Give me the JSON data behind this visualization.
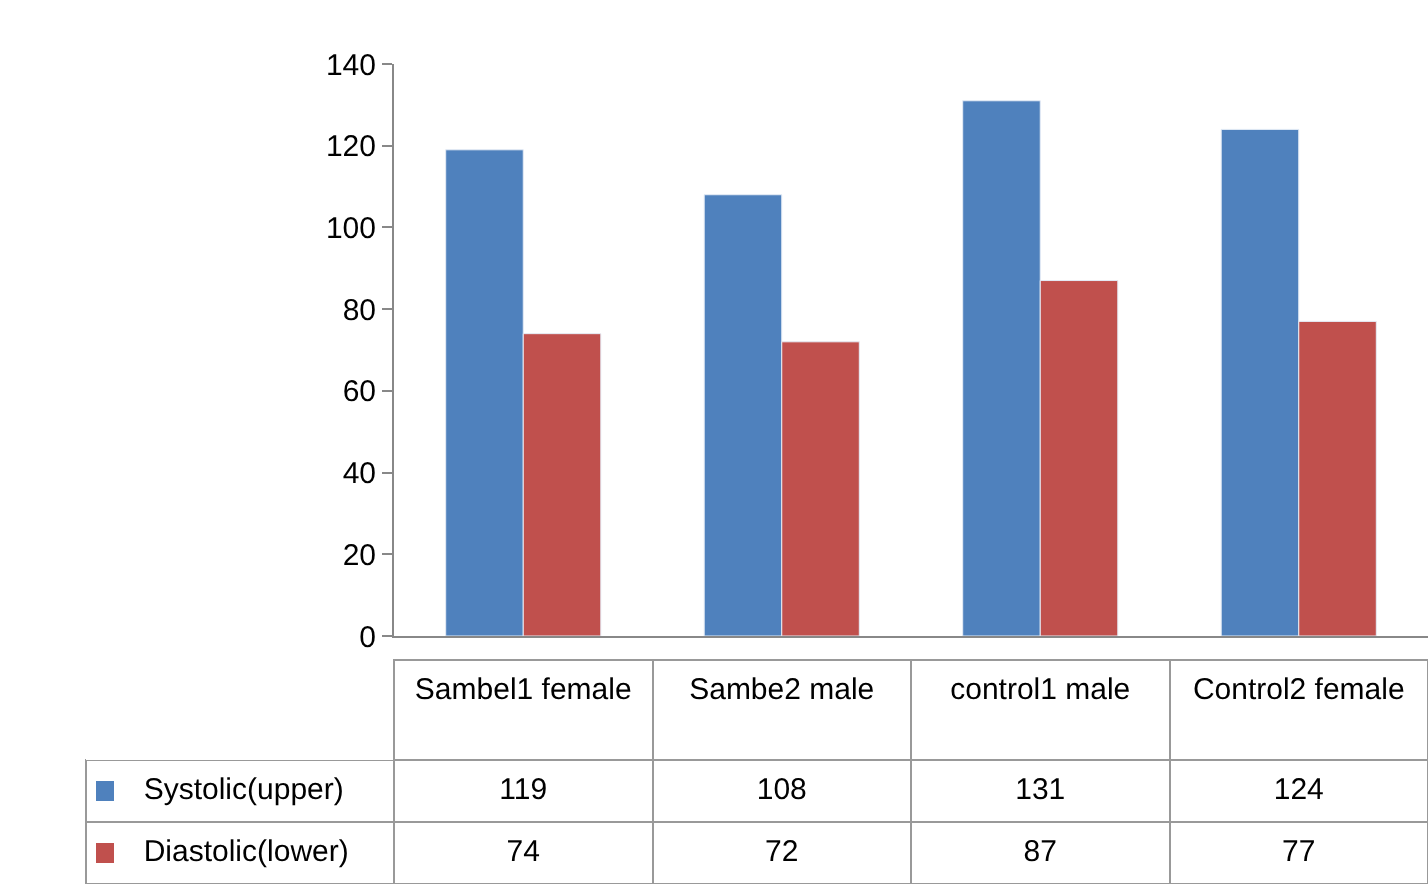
{
  "chart_data": {
    "type": "bar",
    "categories": [
      "Sambel1 female",
      "Sambe2 male",
      "control1 male",
      "Control2 female"
    ],
    "series": [
      {
        "name": "Systolic(upper)",
        "color": "#4f81bd",
        "values": [
          119,
          108,
          131,
          124
        ]
      },
      {
        "name": "Diastolic(lower)",
        "color": "#c0504d",
        "values": [
          74,
          72,
          87,
          77
        ]
      }
    ],
    "ylim": [
      0,
      140
    ],
    "yticks": [
      0,
      20,
      40,
      60,
      80,
      100,
      120,
      140
    ],
    "grid": false,
    "legend": "bottom",
    "data_labels": true
  }
}
